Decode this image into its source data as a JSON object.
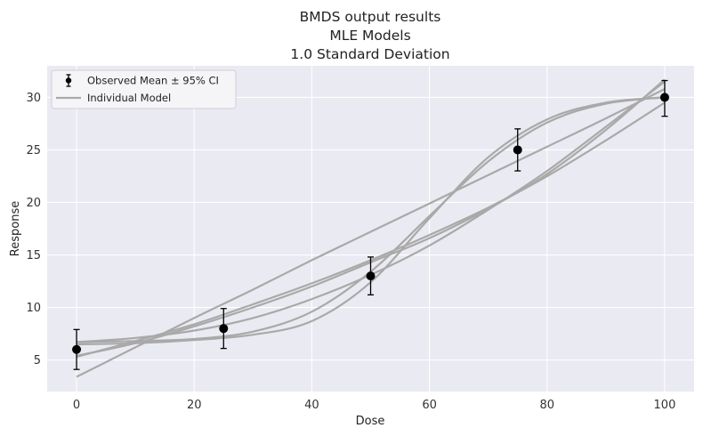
{
  "chart_data": {
    "type": "line",
    "title_lines": [
      "BMDS output results",
      "MLE Models",
      "1.0 Standard Deviation"
    ],
    "xlabel": "Dose",
    "ylabel": "Response",
    "xlim": [
      -5,
      105
    ],
    "ylim": [
      2,
      33
    ],
    "xticks": [
      0,
      20,
      40,
      60,
      80,
      100
    ],
    "yticks": [
      5,
      10,
      15,
      20,
      25,
      30
    ],
    "grid": true,
    "legend_position": "top-left",
    "colors": {
      "background": "#eaeaf2",
      "grid": "#ffffff",
      "model": "#a9a9a9",
      "observed": "#000000"
    },
    "observed": {
      "name": "Observed Mean ± 95% CI",
      "x": [
        0,
        25,
        50,
        75,
        100
      ],
      "y": [
        6.0,
        8.0,
        13.0,
        25.0,
        30.0
      ],
      "ci_low": [
        4.1,
        6.1,
        11.2,
        23.0,
        28.2
      ],
      "ci_high": [
        7.9,
        9.9,
        14.8,
        27.0,
        31.6
      ]
    },
    "model_legend_label": "Individual Model",
    "series": [
      {
        "x": [
          0,
          10,
          20,
          30,
          40,
          50,
          60,
          70,
          80,
          90,
          100
        ],
        "values": [
          3.4,
          6.2,
          9.0,
          11.7,
          14.5,
          17.2,
          19.9,
          22.6,
          25.3,
          28.0,
          30.8
        ]
      },
      {
        "x": [
          0,
          10,
          20,
          30,
          40,
          50,
          60,
          70,
          80,
          90,
          100
        ],
        "values": [
          6.7,
          6.8,
          7.0,
          7.7,
          9.6,
          13.4,
          18.7,
          23.9,
          27.6,
          29.4,
          30.0
        ]
      },
      {
        "x": [
          0,
          10,
          20,
          30,
          40,
          50,
          60,
          70,
          80,
          90,
          100
        ],
        "values": [
          6.5,
          6.6,
          6.9,
          7.4,
          8.7,
          12.4,
          18.5,
          24.3,
          27.9,
          29.5,
          30.0
        ]
      },
      {
        "x": [
          0,
          10,
          20,
          30,
          40,
          50,
          60,
          70,
          80,
          90,
          100
        ],
        "values": [
          5.3,
          6.8,
          8.4,
          10.3,
          12.3,
          14.5,
          16.9,
          19.5,
          22.5,
          25.9,
          29.5
        ]
      },
      {
        "x": [
          0,
          10,
          20,
          30,
          40,
          50,
          60,
          70,
          80,
          90,
          100
        ],
        "values": [
          5.4,
          6.6,
          8.2,
          10.0,
          12.0,
          14.3,
          16.6,
          19.4,
          22.7,
          26.9,
          31.7
        ]
      },
      {
        "x": [
          0,
          10,
          20,
          30,
          40,
          50,
          60,
          70,
          80,
          90,
          100
        ],
        "values": [
          6.7,
          7.1,
          7.8,
          9.0,
          10.8,
          13.1,
          15.9,
          19.3,
          23.0,
          27.2,
          31.5
        ]
      }
    ]
  }
}
